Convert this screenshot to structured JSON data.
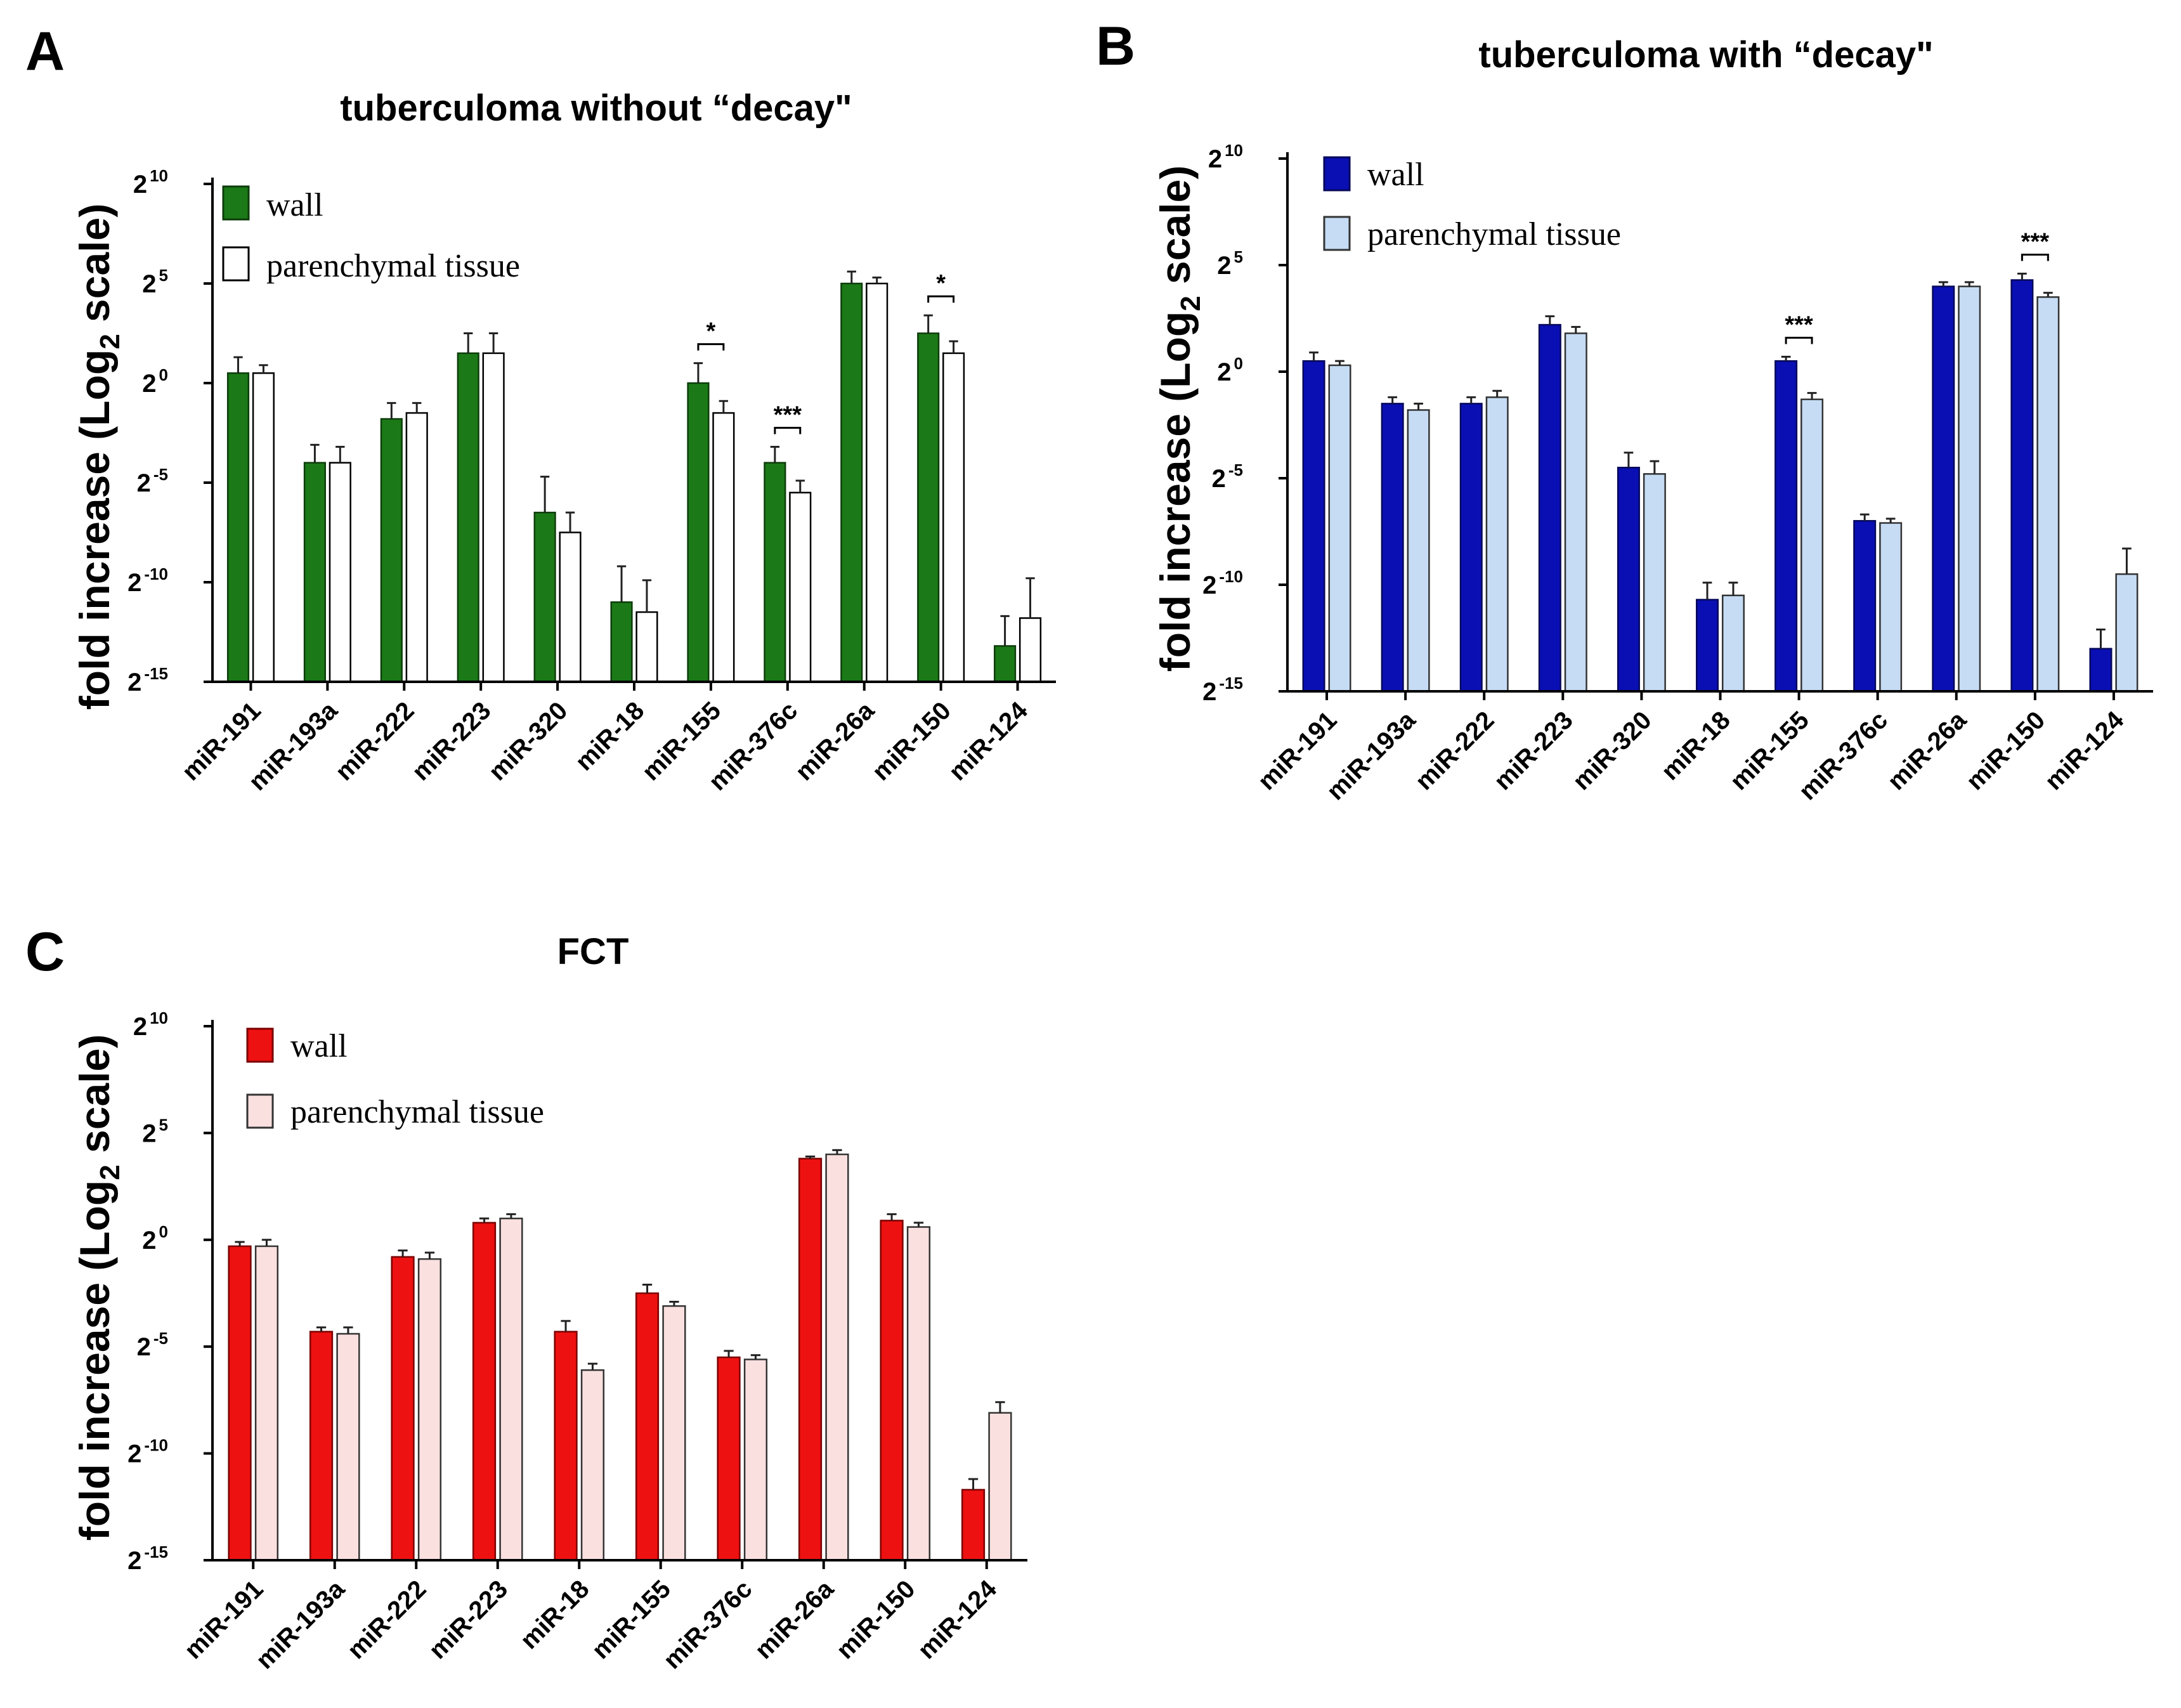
{
  "chart_data": [
    {
      "id": "A",
      "panel_label": "A",
      "type": "bar",
      "title": "tuberculoma without “decay\"",
      "ylabel_main": "fold increase (Log",
      "ylabel_sub": "2",
      "ylabel_tail": " scale)",
      "xlabel": "",
      "y_scale": "log2",
      "ylim_exp": [
        -15,
        10
      ],
      "yticks": [
        {
          "base": "2",
          "exp": "10",
          "value": 10
        },
        {
          "base": "2",
          "exp": "5",
          "value": 5
        },
        {
          "base": "2",
          "exp": "0",
          "value": 0
        },
        {
          "base": "2",
          "exp": "-5",
          "value": -5
        },
        {
          "base": "2",
          "exp": "-10",
          "value": -10
        },
        {
          "base": "2",
          "exp": "-15",
          "value": -15
        }
      ],
      "categories": [
        "miR-191",
        "miR-193a",
        "miR-222",
        "miR-223",
        "miR-320",
        "miR-18",
        "miR-155",
        "miR-376c",
        "miR-26a",
        "miR-150",
        "miR-124"
      ],
      "series": [
        {
          "name": "wall",
          "color": "#1b7a17",
          "stroke": "#0d3d0b",
          "values": [
            0.5,
            -4.0,
            -1.8,
            1.5,
            -6.5,
            -11.0,
            0.0,
            -4.0,
            5.0,
            2.5,
            -13.2
          ],
          "errors": [
            0.8,
            0.9,
            0.8,
            1.0,
            1.8,
            1.8,
            1.0,
            0.8,
            0.6,
            0.9,
            1.5
          ]
        },
        {
          "name": "parenchymal tissue",
          "color": "#ffffff",
          "stroke": "#000000",
          "values": [
            0.5,
            -4.0,
            -1.5,
            1.5,
            -7.5,
            -11.5,
            -1.5,
            -5.5,
            5.0,
            1.5,
            -11.8
          ],
          "errors": [
            0.4,
            0.8,
            0.5,
            1.0,
            1.0,
            1.6,
            0.6,
            0.6,
            0.3,
            0.6,
            2.0
          ]
        }
      ],
      "significance": [
        {
          "category_index": 6,
          "label": "*"
        },
        {
          "category_index": 7,
          "label": "***"
        },
        {
          "category_index": 9,
          "label": "*"
        }
      ],
      "legend_position": "top-left"
    },
    {
      "id": "B",
      "panel_label": "B",
      "type": "bar",
      "title": "tuberculoma with “decay\"",
      "ylabel_main": "fold increase (Log",
      "ylabel_sub": "2",
      "ylabel_tail": " scale)",
      "xlabel": "",
      "y_scale": "log2",
      "ylim_exp": [
        -15,
        10
      ],
      "yticks": [
        {
          "base": "2",
          "exp": "10",
          "value": 10
        },
        {
          "base": "2",
          "exp": "5",
          "value": 5
        },
        {
          "base": "2",
          "exp": "0",
          "value": 0
        },
        {
          "base": "2",
          "exp": "-5",
          "value": -5
        },
        {
          "base": "2",
          "exp": "-10",
          "value": -10
        },
        {
          "base": "2",
          "exp": "-15",
          "value": -15
        }
      ],
      "categories": [
        "miR-191",
        "miR-193a",
        "miR-222",
        "miR-223",
        "miR-320",
        "miR-18",
        "miR-155",
        "miR-376c",
        "miR-26a",
        "miR-150",
        "miR-124"
      ],
      "series": [
        {
          "name": "wall",
          "color": "#0a0fb4",
          "stroke": "#05085a",
          "values": [
            0.5,
            -1.5,
            -1.5,
            2.2,
            -4.5,
            -10.7,
            0.5,
            -7.0,
            4.0,
            4.3,
            -13.0
          ],
          "errors": [
            0.4,
            0.3,
            0.3,
            0.4,
            0.7,
            0.8,
            0.2,
            0.3,
            0.2,
            0.3,
            0.9
          ]
        },
        {
          "name": "parenchymal tissue",
          "color": "#c6dcf5",
          "stroke": "#333333",
          "values": [
            0.3,
            -1.8,
            -1.2,
            1.8,
            -4.8,
            -10.5,
            -1.3,
            -7.1,
            4.0,
            3.5,
            -9.5
          ],
          "errors": [
            0.2,
            0.3,
            0.3,
            0.3,
            0.6,
            0.6,
            0.3,
            0.2,
            0.2,
            0.2,
            1.2
          ]
        }
      ],
      "significance": [
        {
          "category_index": 6,
          "label": "***"
        },
        {
          "category_index": 9,
          "label": "***"
        }
      ],
      "legend_position": "top-left"
    },
    {
      "id": "C",
      "panel_label": "C",
      "type": "bar",
      "title": "FCT",
      "ylabel_main": "fold increase (Log",
      "ylabel_sub": "2",
      "ylabel_tail": " scale)",
      "xlabel": "",
      "y_scale": "log2",
      "ylim_exp": [
        -15,
        10
      ],
      "yticks": [
        {
          "base": "2",
          "exp": "10",
          "value": 10
        },
        {
          "base": "2",
          "exp": "5",
          "value": 5
        },
        {
          "base": "2",
          "exp": "0",
          "value": 0
        },
        {
          "base": "2",
          "exp": "-5",
          "value": -5
        },
        {
          "base": "2",
          "exp": "-10",
          "value": -10
        },
        {
          "base": "2",
          "exp": "-15",
          "value": -15
        }
      ],
      "categories": [
        "miR-191",
        "miR-193a",
        "miR-222",
        "miR-223",
        "miR-18",
        "miR-155",
        "miR-376c",
        "miR-26a",
        "miR-150",
        "miR-124"
      ],
      "series": [
        {
          "name": "wall",
          "color": "#ee1111",
          "stroke": "#7a0000",
          "values": [
            -0.3,
            -4.3,
            -0.8,
            0.8,
            -4.3,
            -2.5,
            -5.5,
            3.8,
            0.9,
            -11.7
          ],
          "errors": [
            0.2,
            0.2,
            0.3,
            0.2,
            0.5,
            0.4,
            0.3,
            0.1,
            0.3,
            0.5
          ]
        },
        {
          "name": "parenchymal tissue",
          "color": "#fbe0e0",
          "stroke": "#333333",
          "values": [
            -0.3,
            -4.4,
            -0.9,
            1.0,
            -6.1,
            -3.1,
            -5.6,
            4.0,
            0.6,
            -8.1
          ],
          "errors": [
            0.3,
            0.3,
            0.3,
            0.2,
            0.3,
            0.2,
            0.2,
            0.2,
            0.2,
            0.5
          ]
        }
      ],
      "significance": [],
      "legend_position": "top-left"
    }
  ]
}
